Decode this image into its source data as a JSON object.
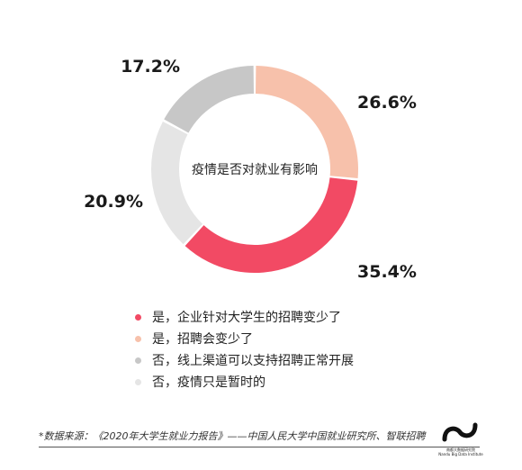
{
  "chart_data": {
    "type": "pie",
    "donut": true,
    "title": "疫情是否对就业有影响",
    "slices": [
      {
        "label": "是，企业针对大学生的招聘变少了",
        "value": 35.4,
        "display": "35.4%",
        "color": "#f24a64"
      },
      {
        "label": "是，招聘会变少了",
        "value": 26.6,
        "display": "26.6%",
        "color": "#f7c1ab"
      },
      {
        "label": "否，线上渠道可以支持招聘正常开展",
        "value": 17.2,
        "display": "17.2%",
        "color": "#c7c7c7"
      },
      {
        "label": "否，疫情只是暂时的",
        "value": 20.9,
        "display": "20.9%",
        "color": "#e5e5e5"
      }
    ],
    "legend_position": "bottom"
  },
  "footer": {
    "source": "*数据来源：《2020年大学生就业力报告》——中国人民大学中国就业研究所、智联招聘",
    "logo_text": "南都大数据研究院",
    "logo_subtext": "Nandu Big Data Institute"
  }
}
